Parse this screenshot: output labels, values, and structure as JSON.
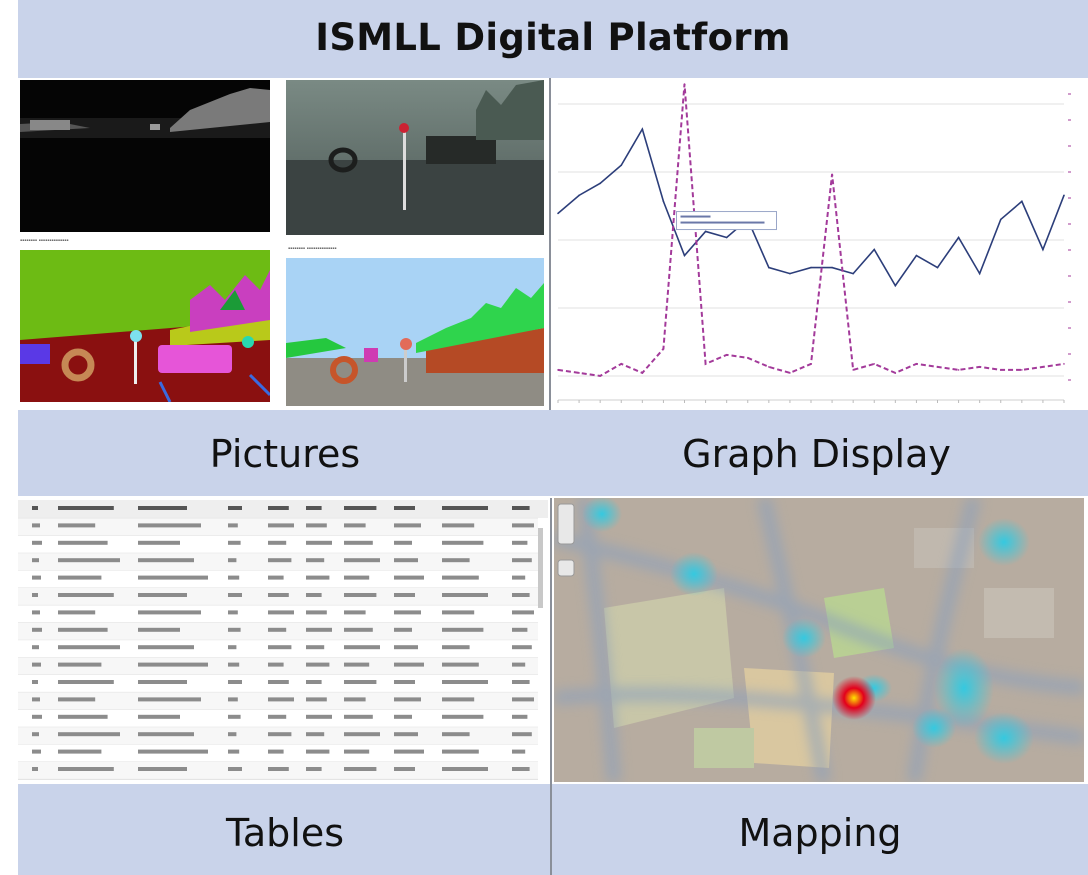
{
  "title": "ISMLL Digital Platform",
  "sections": {
    "pictures": "Pictures",
    "graph": "Graph Display",
    "tables": "Tables",
    "mapping": "Mapping"
  },
  "colors": {
    "band": "#c9d3ea",
    "series_a": "#2c3e7a",
    "series_b": "#a33a9a",
    "heat_hot": "#e3001b",
    "heat_cool": "#35c9e0"
  },
  "chart_data": {
    "type": "line",
    "x": [
      1,
      2,
      3,
      4,
      5,
      6,
      7,
      8,
      9,
      10,
      11,
      12,
      13,
      14,
      15,
      16,
      17,
      18,
      19,
      20,
      21,
      22,
      23,
      24,
      25
    ],
    "series": [
      {
        "style": "solid",
        "values": [
          62,
          68,
          72,
          78,
          90,
          66,
          48,
          56,
          54,
          60,
          44,
          42,
          44,
          44,
          42,
          50,
          38,
          48,
          44,
          54,
          42,
          60,
          66,
          50,
          68
        ]
      },
      {
        "style": "dashed",
        "values": [
          10,
          9,
          8,
          12,
          9,
          17,
          105,
          12,
          15,
          14,
          11,
          9,
          12,
          75,
          10,
          12,
          9,
          12,
          11,
          10,
          11,
          10,
          10,
          11,
          12
        ]
      }
    ],
    "ylim": [
      0,
      105
    ],
    "grid": true
  },
  "table_rows": 15,
  "table_cols": 10
}
